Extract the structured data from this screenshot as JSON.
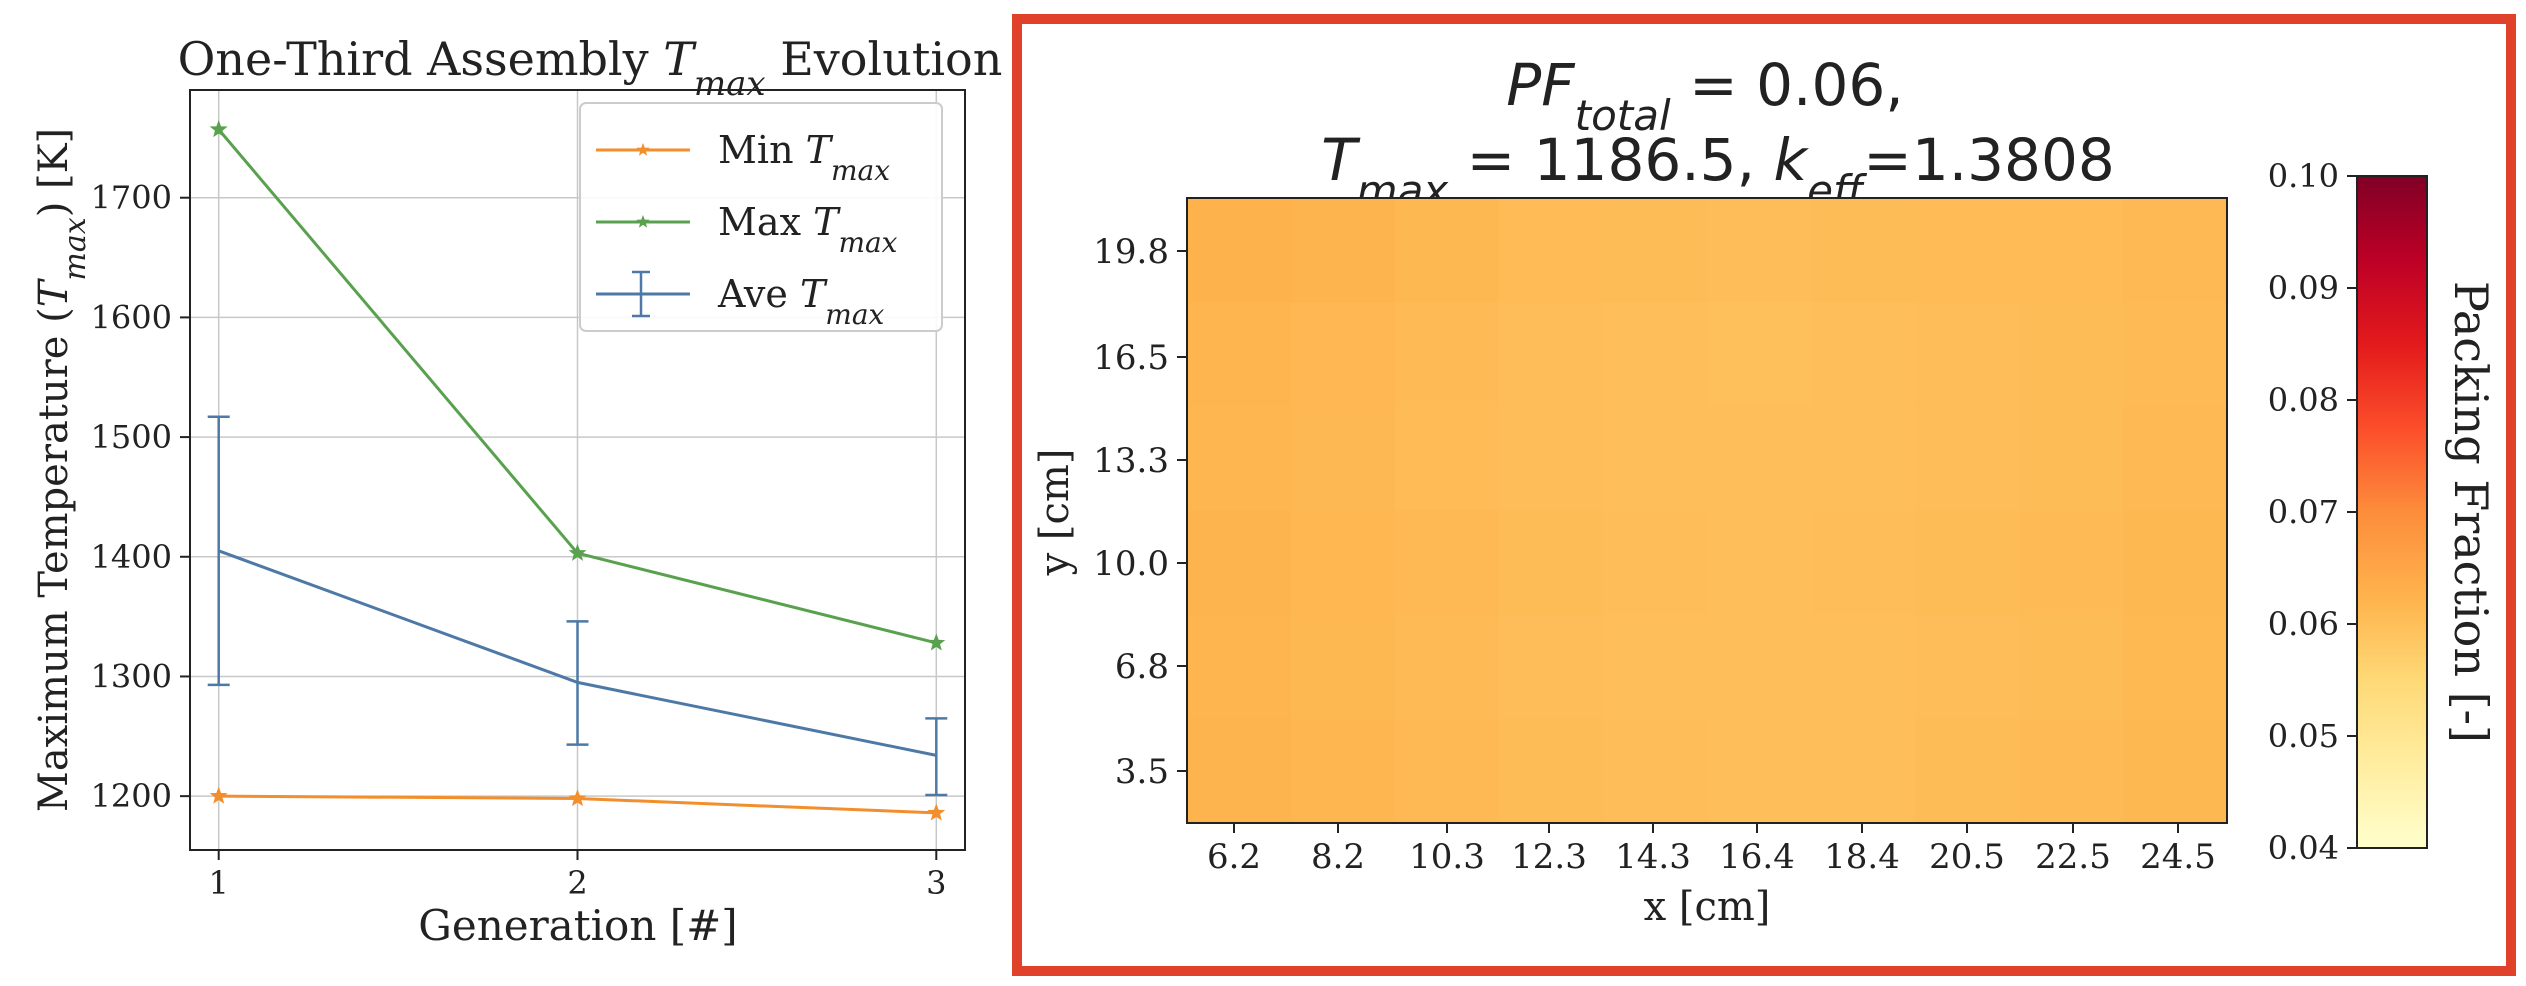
{
  "chart_data": [
    {
      "type": "line",
      "title": "One-Third Assembly T_max Evolution",
      "title_parts": [
        "One-Third Assembly ",
        "T",
        "max",
        " Evolution"
      ],
      "xlabel": "Generation [#]",
      "ylabel": "Maximum Temperature (T_max) [K]",
      "ylabel_parts": [
        "Maximum Temperature (",
        "T",
        "max",
        ") [K]"
      ],
      "x": [
        1,
        2,
        3
      ],
      "x_ticks": [
        "1",
        "2",
        "3"
      ],
      "y_ticks": [
        1200,
        1300,
        1400,
        1500,
        1600,
        1700
      ],
      "ylim": [
        1155,
        1790
      ],
      "xlim": [
        0.92,
        3.08
      ],
      "grid": true,
      "legend_position": "upper right",
      "series": [
        {
          "name": "Min T_max",
          "name_parts": [
            "Min ",
            "T",
            "max"
          ],
          "color": "#f28e2b",
          "marker": "star",
          "values": [
            1200,
            1198,
            1186
          ]
        },
        {
          "name": "Max T_max",
          "name_parts": [
            "Max ",
            "T",
            "max"
          ],
          "color": "#59a14f",
          "marker": "star",
          "values": [
            1757,
            1403,
            1328
          ]
        },
        {
          "name": "Ave T_max",
          "name_parts": [
            "Ave ",
            "T",
            "max"
          ],
          "color": "#4e79a7",
          "marker": "errorbar",
          "values": [
            1405,
            1295,
            1234
          ],
          "err_low": [
            1293,
            1243,
            1201
          ],
          "err_high": [
            1517,
            1346,
            1265
          ]
        }
      ]
    },
    {
      "type": "heatmap",
      "title_line1_parts": [
        "PF",
        "total",
        " = 0.06,"
      ],
      "title_line2_parts": [
        "T",
        "max",
        " = 1186.5, ",
        "k",
        "eff",
        "=1.3808"
      ],
      "xlabel": "x [cm]",
      "ylabel": "y [cm]",
      "x_ticks": [
        "6.2",
        "8.2",
        "10.3",
        "12.3",
        "14.3",
        "16.4",
        "18.4",
        "20.5",
        "22.5",
        "24.5"
      ],
      "y_ticks": [
        "3.5",
        "6.8",
        "10.0",
        "13.3",
        "16.5",
        "19.8"
      ],
      "colorbar": {
        "label": "Packing Fraction [-]",
        "min": 0.04,
        "max": 0.1,
        "ticks": [
          "0.04",
          "0.05",
          "0.06",
          "0.07",
          "0.08",
          "0.09",
          "0.10"
        ],
        "colormap": "YlOrRd"
      },
      "grid_cols": 10,
      "grid_rows": 6,
      "values": [
        [
          0.0625,
          0.0622,
          0.0614,
          0.0608,
          0.0605,
          0.0604,
          0.0605,
          0.0607,
          0.0608,
          0.0611
        ],
        [
          0.062,
          0.0615,
          0.061,
          0.0604,
          0.06,
          0.0599,
          0.06,
          0.0603,
          0.0605,
          0.0609
        ],
        [
          0.0618,
          0.0613,
          0.0608,
          0.0603,
          0.06,
          0.06,
          0.0601,
          0.0603,
          0.0606,
          0.0611
        ],
        [
          0.0621,
          0.0616,
          0.0611,
          0.0606,
          0.0603,
          0.0602,
          0.0603,
          0.0606,
          0.0609,
          0.0614
        ],
        [
          0.0619,
          0.0614,
          0.0609,
          0.0604,
          0.0601,
          0.06,
          0.0601,
          0.0603,
          0.0606,
          0.0612
        ],
        [
          0.0622,
          0.0617,
          0.0611,
          0.0606,
          0.0603,
          0.0601,
          0.0602,
          0.0605,
          0.0609,
          0.0614
        ]
      ]
    }
  ],
  "highlight_color": "#e0412a"
}
